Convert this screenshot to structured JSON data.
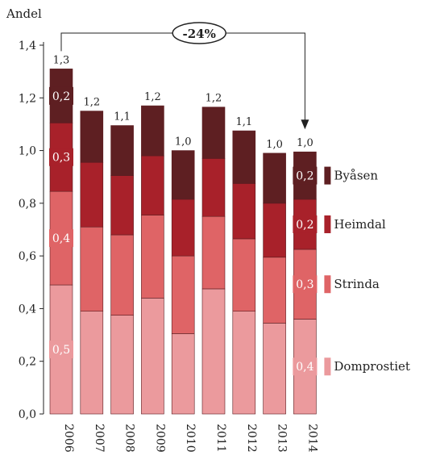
{
  "chart_data": {
    "type": "bar",
    "stacked": true,
    "title": "",
    "ylabel": "Andel",
    "xlabel": "",
    "ylim": [
      0,
      1.4
    ],
    "yticks": [
      "0,0",
      "0,2",
      "0,4",
      "0,6",
      "0,8",
      "1,0",
      "1,2",
      "1,4"
    ],
    "grid": false,
    "legend_position": "right",
    "categories": [
      "2006",
      "2007",
      "2008",
      "2009",
      "2010",
      "2011",
      "2012",
      "2013",
      "2014"
    ],
    "totals": [
      "1,3",
      "1,2",
      "1,1",
      "1,2",
      "1,0",
      "1,2",
      "1,1",
      "1,0",
      "1,0"
    ],
    "series": [
      {
        "name": "Domprostiet",
        "color": "#eb9a9d",
        "values": [
          0.49,
          0.39,
          0.375,
          0.44,
          0.305,
          0.475,
          0.39,
          0.345,
          0.36
        ]
      },
      {
        "name": "Strinda",
        "color": "#df6466",
        "values": [
          0.355,
          0.32,
          0.305,
          0.315,
          0.295,
          0.275,
          0.275,
          0.25,
          0.265
        ]
      },
      {
        "name": "Heimdal",
        "color": "#a8212a",
        "values": [
          0.26,
          0.245,
          0.225,
          0.225,
          0.215,
          0.22,
          0.21,
          0.205,
          0.19
        ]
      },
      {
        "name": "Byåsen",
        "color": "#5e1f22",
        "values": [
          0.205,
          0.195,
          0.19,
          0.19,
          0.185,
          0.195,
          0.2,
          0.19,
          0.18
        ]
      }
    ],
    "segment_labels": {
      "2006": [
        "0,5",
        "0,4",
        "0,3",
        "0,2"
      ],
      "2014": [
        "0,4",
        "0,3",
        "0,2",
        "0,2"
      ]
    },
    "annotation": {
      "text": "-24%",
      "from": "2006",
      "to": "2014"
    }
  }
}
